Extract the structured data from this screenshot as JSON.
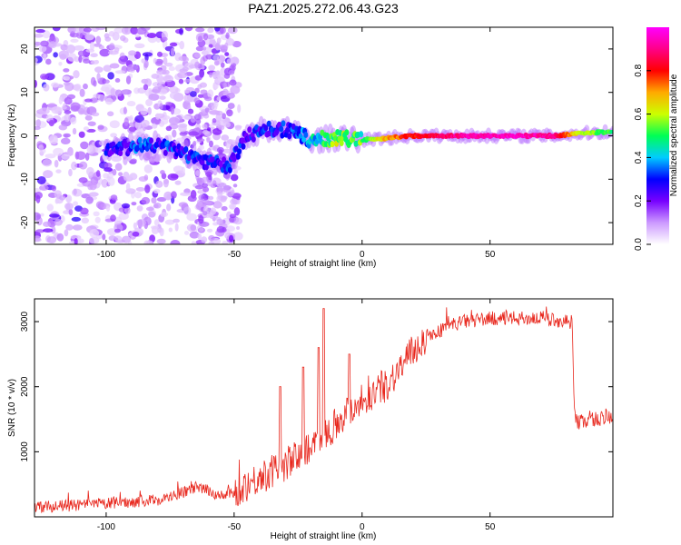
{
  "chart_data": [
    {
      "type": "heatmap",
      "title": "PAZ1.2025.272.06.43.G23",
      "xlabel": "Height of straight line (km)",
      "ylabel": "Frequency (Hz)",
      "xlim": [
        -128,
        98
      ],
      "ylim": [
        -25,
        25
      ],
      "xticks": [
        -100,
        -50,
        0,
        50
      ],
      "yticks": [
        20,
        10,
        0,
        -10,
        -20
      ],
      "colorbar": {
        "label": "Normalized spectral amplitude",
        "range": [
          0,
          1
        ],
        "ticks": [
          "0.0",
          "0.2",
          "0.4",
          "0.6",
          "0.8"
        ],
        "colors": [
          "#ffffff",
          "#cc99ff",
          "#7700ff",
          "#0000ff",
          "#00ccff",
          "#00ff55",
          "#ccff00",
          "#ffaa00",
          "#ff0000",
          "#ff0088",
          "#ff00ff"
        ]
      },
      "ridge": [
        {
          "x": -100,
          "y": -3.0,
          "a": 0.25
        },
        {
          "x": -90,
          "y": -2.5,
          "a": 0.3
        },
        {
          "x": -80,
          "y": -2.0,
          "a": 0.3
        },
        {
          "x": -70,
          "y": -4.0,
          "a": 0.28
        },
        {
          "x": -60,
          "y": -6.0,
          "a": 0.27
        },
        {
          "x": -52,
          "y": -7.0,
          "a": 0.27
        },
        {
          "x": -45,
          "y": 0.0,
          "a": 0.25
        },
        {
          "x": -38,
          "y": 1.5,
          "a": 0.28
        },
        {
          "x": -30,
          "y": 1.5,
          "a": 0.28
        },
        {
          "x": -20,
          "y": -1.0,
          "a": 0.4
        },
        {
          "x": -10,
          "y": -0.5,
          "a": 0.55
        },
        {
          "x": 0,
          "y": -1.0,
          "a": 0.5
        },
        {
          "x": 10,
          "y": -0.5,
          "a": 0.7
        },
        {
          "x": 20,
          "y": 0.0,
          "a": 0.8
        },
        {
          "x": 40,
          "y": 0.0,
          "a": 0.92
        },
        {
          "x": 60,
          "y": 0.0,
          "a": 0.95
        },
        {
          "x": 75,
          "y": 0.0,
          "a": 0.9
        },
        {
          "x": 85,
          "y": 0.5,
          "a": 0.6
        },
        {
          "x": 98,
          "y": 1.0,
          "a": 0.5
        }
      ]
    },
    {
      "type": "line",
      "title": "",
      "xlabel": "Height of straight line (km)",
      "ylabel": "SNR (10 * v/v)",
      "xlim": [
        -128,
        98
      ],
      "ylim": [
        0,
        3350
      ],
      "xticks": [
        -100,
        -50,
        0,
        50
      ],
      "yticks": [
        1000,
        2000,
        3000
      ],
      "color": "#e8281e",
      "series": [
        {
          "name": "SNR",
          "x": [
            -128,
            -110,
            -90,
            -80,
            -75,
            -65,
            -60,
            -55,
            -50,
            -45,
            -40,
            -35,
            -30,
            -25,
            -20,
            -15,
            -10,
            -5,
            0,
            5,
            10,
            15,
            20,
            25,
            30,
            35,
            40,
            50,
            60,
            70,
            80,
            82,
            83,
            84,
            90,
            98
          ],
          "y": [
            150,
            180,
            230,
            260,
            300,
            450,
            400,
            320,
            360,
            500,
            600,
            700,
            800,
            950,
            1100,
            1250,
            1450,
            1650,
            1800,
            1900,
            2050,
            2300,
            2550,
            2750,
            2850,
            2950,
            3000,
            3050,
            3050,
            3050,
            3000,
            3000,
            1600,
            1450,
            1500,
            1520
          ]
        }
      ],
      "spikes": [
        {
          "x": -15,
          "y": 3200
        },
        {
          "x": -23,
          "y": 2300
        },
        {
          "x": -17,
          "y": 2600
        },
        {
          "x": -5,
          "y": 2500
        },
        {
          "x": -32,
          "y": 2000
        }
      ]
    }
  ]
}
